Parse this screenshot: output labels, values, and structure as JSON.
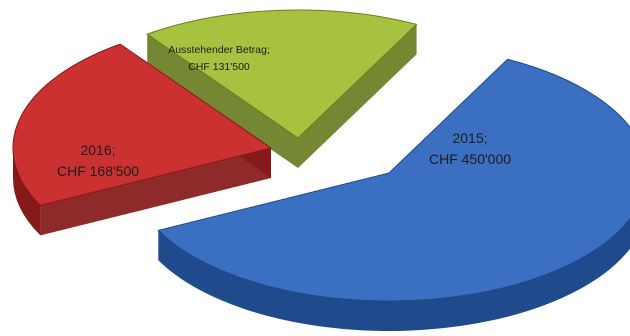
{
  "chart_data": {
    "type": "pie",
    "title": "",
    "currency": "CHF",
    "slices": [
      {
        "category": "2015",
        "value": 450000,
        "label_line1": "2015;",
        "label_line2": "CHF 450'000",
        "color": "#3b6fc2",
        "side_color": "#1f4a8c"
      },
      {
        "category": "2016",
        "value": 168500,
        "label_line1": "2016;",
        "label_line2": "CHF 168'500",
        "color": "#cc3131",
        "side_color": "#861818"
      },
      {
        "category": "Ausstehender Betrag",
        "value": 131500,
        "label_line1": "Ausstehender Betrag;",
        "label_line2": "CHF 131'500",
        "color": "#a6c23f",
        "side_color": "#6a7d22"
      }
    ],
    "exploded": true,
    "style": "3d"
  }
}
